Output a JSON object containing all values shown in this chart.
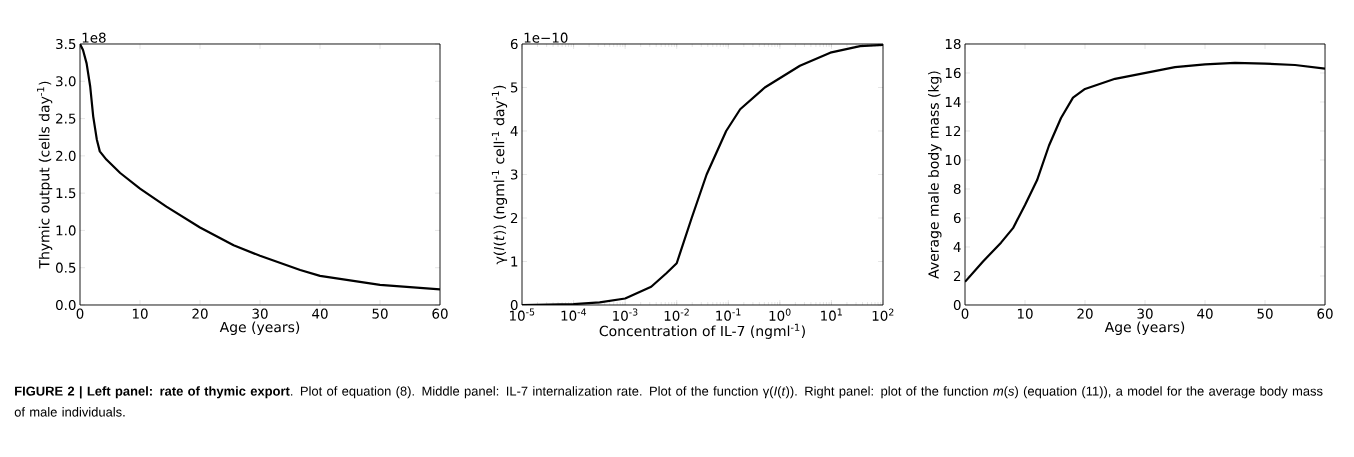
{
  "chart_data": [
    {
      "type": "line",
      "xlabel": "Age (years)",
      "ylabel": "Thymic output (cells day$^{-1}$)",
      "annotations": [
        "1e8",
        "**FIGURE 2 | Left panel: rate of thymic export**. Plot of equation (8). Middle panel: IL-7 internalization rate. Plot of the function γ(*I*(*t*)). Right panel: plot of the function *m*(*s*) (equation (11)), a model for the average body mass of male individuals."
      ],
      "x": [
        0,
        0.5,
        1.1,
        1.7,
        2.2,
        2.8,
        3.3,
        4.4,
        6.7,
        10,
        14.4,
        20,
        25.6,
        30,
        36.7,
        40,
        50,
        60
      ],
      "series": [
        {
          "color": "#000000",
          "values": [
            3.5,
            3.42,
            3.24,
            2.93,
            2.53,
            2.22,
            2.06,
            1.95,
            1.77,
            1.56,
            1.32,
            1.04,
            0.8,
            0.66,
            0.47,
            0.39,
            0.27,
            0.21
          ]
        }
      ],
      "xlim": [
        0,
        60
      ],
      "ylim": [
        0,
        3.5
      ],
      "xticks": [
        0,
        10,
        20,
        30,
        40,
        50,
        60
      ],
      "yticks": [
        {
          "value": 0,
          "label": "0.0"
        },
        0.5,
        {
          "value": 1,
          "label": "1.0"
        },
        1.5,
        {
          "value": 2,
          "label": "2.0"
        },
        2.5,
        {
          "value": 3,
          "label": "3.0"
        },
        3.5
      ]
    },
    {
      "type": "line",
      "xlabel": "Concentration of IL-7 (ngml$^{-1}$)",
      "ylabel": "γ(*I*(*t*)) (ngml$^{-1}$ cell$^{-1}$ day$^{-1}$)",
      "log": "x",
      "annotations": [
        "1e−10"
      ],
      "x": [
        1e-05,
        0.0001,
        0.00032,
        0.001,
        0.0032,
        0.0063,
        0.01,
        0.0195,
        0.038,
        0.091,
        0.17,
        0.51,
        2.45,
        9.5,
        36,
        100
      ],
      "series": [
        {
          "color": "#000000",
          "values": [
            0,
            0.02,
            0.06,
            0.15,
            0.42,
            0.73,
            0.96,
            2,
            3,
            4,
            4.5,
            5,
            5.5,
            5.8,
            5.95,
            5.98
          ]
        }
      ],
      "xlim": [
        1e-05,
        100
      ],
      "ylim": [
        0,
        6
      ],
      "xticks": [
        {
          "value": 1e-05,
          "label": "10$^{-5}$"
        },
        {
          "value": 0.0001,
          "label": "10$^{-4}$"
        },
        {
          "value": 0.001,
          "label": "10$^{-3}$"
        },
        {
          "value": 0.01,
          "label": "10$^{-2}$"
        },
        {
          "value": 0.1,
          "label": "10$^{-1}$"
        },
        {
          "value": 1,
          "label": "10$^{0}$"
        },
        {
          "value": 10,
          "label": "10$^{1}$"
        },
        {
          "value": 100,
          "label": "10$^{2}$"
        }
      ],
      "yticks": [
        0,
        1,
        2,
        3,
        4,
        5,
        6
      ]
    },
    {
      "type": "line",
      "xlabel": "Age (years)",
      "ylabel": "Average male body mass (kg)",
      "x": [
        0,
        3,
        6,
        8,
        10,
        12,
        14,
        16,
        18,
        20,
        25,
        30,
        35,
        40,
        45,
        50,
        55,
        60
      ],
      "series": [
        {
          "color": "#000000",
          "values": [
            1.6,
            3.0,
            4.3,
            5.3,
            6.9,
            8.6,
            11.0,
            12.9,
            14.3,
            14.9,
            15.6,
            16.0,
            16.4,
            16.6,
            16.7,
            16.65,
            16.55,
            16.3
          ]
        }
      ],
      "xlim": [
        0,
        60
      ],
      "ylim": [
        0,
        18
      ],
      "xticks": [
        0,
        10,
        20,
        30,
        40,
        50,
        60
      ],
      "yticks": [
        0,
        2,
        4,
        6,
        8,
        10,
        12,
        14,
        16,
        18
      ]
    }
  ]
}
